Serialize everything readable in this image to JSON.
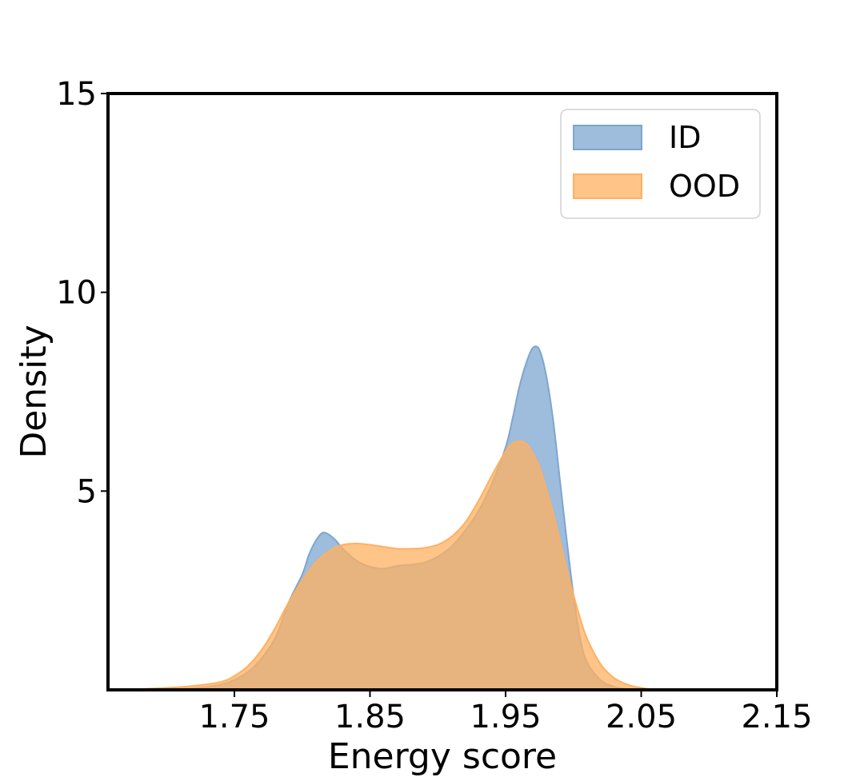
{
  "chart_data": {
    "type": "area",
    "title": "",
    "xlabel": "Energy score",
    "ylabel": "Density",
    "xlim": [
      1.6568,
      2.15
    ],
    "ylim": [
      0,
      15
    ],
    "xticks": [
      1.75,
      1.85,
      1.95,
      2.05,
      2.15
    ],
    "xtick_labels": [
      "1.75",
      "1.85",
      "1.95",
      "2.05",
      "2.15"
    ],
    "yticks": [
      5,
      10,
      15
    ],
    "ytick_labels": [
      "5",
      "10",
      "15"
    ],
    "grid": false,
    "legend": {
      "position": "upper right",
      "entries": [
        "ID",
        "OOD"
      ]
    },
    "series": [
      {
        "name": "ID",
        "color": "#7ea6cf",
        "x": [
          1.685,
          1.715,
          1.735,
          1.75,
          1.765,
          1.78,
          1.79,
          1.8,
          1.805,
          1.81,
          1.815,
          1.82,
          1.825,
          1.83,
          1.84,
          1.85,
          1.86,
          1.87,
          1.88,
          1.89,
          1.9,
          1.91,
          1.92,
          1.93,
          1.94,
          1.95,
          1.955,
          1.96,
          1.965,
          1.97,
          1.975,
          1.98,
          1.985,
          1.99,
          1.995,
          2.0,
          2.005,
          2.01,
          2.02,
          2.03,
          2.04,
          2.05
        ],
        "y": [
          0.0,
          0.03,
          0.1,
          0.25,
          0.6,
          1.3,
          2.2,
          2.9,
          3.4,
          3.75,
          3.95,
          3.9,
          3.75,
          3.55,
          3.25,
          3.1,
          3.05,
          3.12,
          3.15,
          3.2,
          3.35,
          3.6,
          4.0,
          4.5,
          5.2,
          6.1,
          6.8,
          7.6,
          8.2,
          8.6,
          8.55,
          7.9,
          6.8,
          5.3,
          3.8,
          2.4,
          1.3,
          0.7,
          0.25,
          0.08,
          0.02,
          0.0
        ]
      },
      {
        "name": "OOD",
        "color": "#ffb060",
        "x": [
          1.665,
          1.7,
          1.72,
          1.74,
          1.75,
          1.76,
          1.77,
          1.78,
          1.79,
          1.8,
          1.81,
          1.82,
          1.83,
          1.84,
          1.85,
          1.86,
          1.87,
          1.88,
          1.89,
          1.9,
          1.91,
          1.92,
          1.93,
          1.94,
          1.95,
          1.955,
          1.96,
          1.965,
          1.97,
          1.975,
          1.98,
          1.985,
          1.99,
          1.995,
          2.0,
          2.005,
          2.01,
          2.02,
          2.03,
          2.04,
          2.05,
          2.06
        ],
        "y": [
          0.0,
          0.05,
          0.1,
          0.2,
          0.35,
          0.6,
          1.0,
          1.55,
          2.2,
          2.75,
          3.2,
          3.5,
          3.65,
          3.68,
          3.65,
          3.6,
          3.55,
          3.55,
          3.57,
          3.65,
          3.85,
          4.2,
          4.75,
          5.4,
          6.0,
          6.2,
          6.25,
          6.2,
          5.95,
          5.6,
          5.05,
          4.45,
          3.75,
          3.05,
          2.4,
          1.8,
          1.3,
          0.65,
          0.3,
          0.13,
          0.05,
          0.0
        ]
      }
    ]
  }
}
